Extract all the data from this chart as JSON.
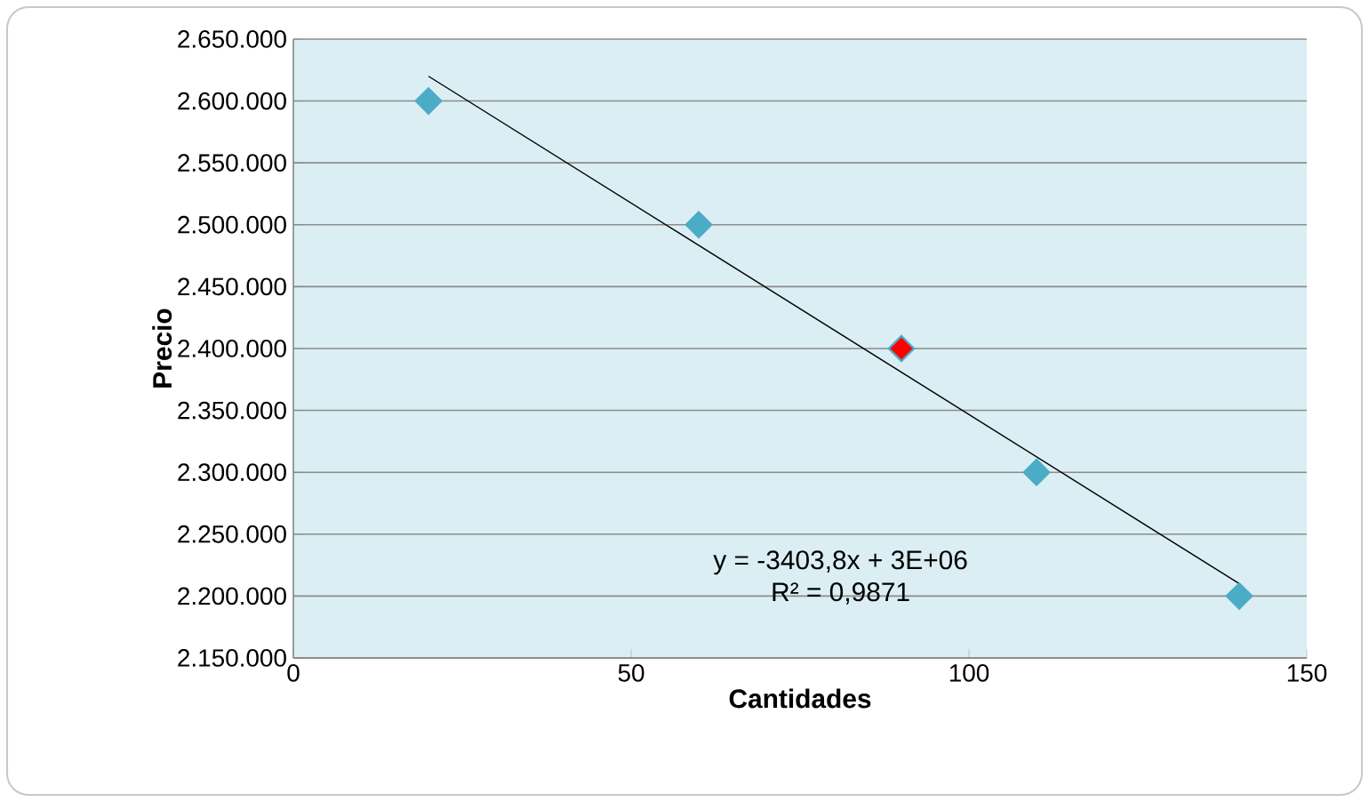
{
  "chart_data": {
    "type": "scatter",
    "xlabel": "Cantidades",
    "ylabel": "Precio",
    "xlim": [
      0,
      150
    ],
    "xticks": [
      0,
      50,
      100,
      150
    ],
    "ylim": [
      2150000,
      2650000
    ],
    "yticks": [
      {
        "value": 2150000,
        "label": "2.150.000"
      },
      {
        "value": 2200000,
        "label": "2.200.000"
      },
      {
        "value": 2250000,
        "label": "2.250.000"
      },
      {
        "value": 2300000,
        "label": "2.300.000"
      },
      {
        "value": 2350000,
        "label": "2.350.000"
      },
      {
        "value": 2400000,
        "label": "2.400.000"
      },
      {
        "value": 2450000,
        "label": "2.450.000"
      },
      {
        "value": 2500000,
        "label": "2.500.000"
      },
      {
        "value": 2550000,
        "label": "2.550.000"
      },
      {
        "value": 2600000,
        "label": "2.600.000"
      },
      {
        "value": 2650000,
        "label": "2.650.000"
      }
    ],
    "grid": "y",
    "marker": "diamond",
    "series": [
      {
        "x": [
          20,
          60,
          90,
          110,
          140
        ],
        "values": [
          2600000,
          2500000,
          2400000,
          2300000,
          2200000
        ],
        "colors": [
          "#4bacc6",
          "#4bacc6",
          "#ff0000",
          "#4bacc6",
          "#4bacc6"
        ]
      },
      {
        "type": "line",
        "x": [
          20,
          140
        ],
        "values": [
          2620000,
          2210000
        ],
        "color": "#000000",
        "marker": "none",
        "line_style": "solid"
      }
    ],
    "annotations": [
      "y = -3403,8x + 3E+06",
      "R² = 0,9871"
    ]
  }
}
